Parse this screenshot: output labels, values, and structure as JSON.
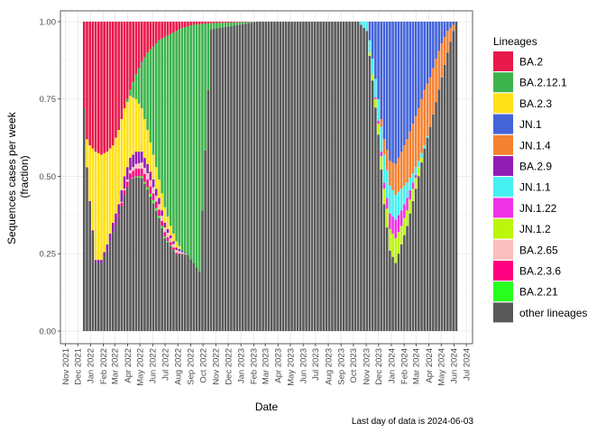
{
  "chart_data": {
    "type": "bar",
    "stacked": true,
    "xlabel": "Date",
    "ylabel_lines": [
      "Sequences cases per week",
      "(fraction)"
    ],
    "caption": "Last day of data is 2024-06-03",
    "ylim": [
      0,
      1
    ],
    "y_ticks": [
      0,
      0.25,
      0.5,
      0.75,
      1
    ],
    "y_tick_labels": [
      "0.00",
      "0.25",
      "0.50",
      "0.75",
      "1.00"
    ],
    "x_range": [
      "2021-10-20",
      "2024-07-16"
    ],
    "x_ticks": [
      "2021-11-01",
      "2021-12-01",
      "2022-01-01",
      "2022-02-01",
      "2022-03-01",
      "2022-04-01",
      "2022-05-01",
      "2022-06-01",
      "2022-07-01",
      "2022-08-01",
      "2022-09-01",
      "2022-10-01",
      "2022-11-01",
      "2022-12-01",
      "2023-01-01",
      "2023-02-01",
      "2023-03-01",
      "2023-04-01",
      "2023-05-01",
      "2023-06-01",
      "2023-07-01",
      "2023-08-01",
      "2023-09-01",
      "2023-10-01",
      "2023-11-01",
      "2023-12-01",
      "2024-01-01",
      "2024-02-01",
      "2024-03-01",
      "2024-04-01",
      "2024-05-01",
      "2024-06-01",
      "2024-07-01"
    ],
    "x_tick_labels": [
      "Nov 2021",
      "Dec 2021",
      "Jan 2022",
      "Feb 2022",
      "Mar 2022",
      "Apr 2022",
      "May 2022",
      "Jun 2022",
      "Jul 2022",
      "Aug 2022",
      "Sep 2022",
      "Oct 2022",
      "Nov 2022",
      "Dec 2022",
      "Jan 2023",
      "Feb 2023",
      "Mar 2023",
      "Apr 2023",
      "May 2023",
      "Jun 2023",
      "Jul 2023",
      "Aug 2023",
      "Sep 2023",
      "Oct 2023",
      "Nov 2023",
      "Dec 2023",
      "Jan 2024",
      "Feb 2024",
      "Mar 2024",
      "Apr 2024",
      "May 2024",
      "Jun 2024",
      "Jul 2024"
    ],
    "grid": true,
    "legend": {
      "title": "Lineages",
      "position": "right",
      "entries": [
        {
          "name": "BA.2",
          "color": "#e8194b"
        },
        {
          "name": "BA.2.12.1",
          "color": "#3cb44b"
        },
        {
          "name": "BA.2.3",
          "color": "#ffe119"
        },
        {
          "name": "JN.1",
          "color": "#4363d8"
        },
        {
          "name": "JN.1.4",
          "color": "#f58231"
        },
        {
          "name": "BA.2.9",
          "color": "#911eb4"
        },
        {
          "name": "JN.1.1",
          "color": "#46f0f0"
        },
        {
          "name": "JN.1.22",
          "color": "#f032e6"
        },
        {
          "name": "JN.1.2",
          "color": "#bcf60c"
        },
        {
          "name": "BA.2.65",
          "color": "#fabebe"
        },
        {
          "name": "BA.2.3.6",
          "color": "#ff0080"
        },
        {
          "name": "BA.2.21",
          "color": "#29ff1f"
        },
        {
          "name": "other lineages",
          "color": "#595959"
        }
      ]
    },
    "week_start": "2021-12-13",
    "week_count": 130,
    "series_keyframes": {
      "note_units": "fraction of weekly sequences",
      "BA.2": {
        "weeks": [
          0,
          1,
          2,
          4,
          6,
          8,
          10,
          12,
          14,
          16,
          18,
          20,
          22,
          24,
          26,
          28,
          30,
          32,
          34,
          36,
          38,
          40,
          44,
          60,
          129
        ],
        "values": [
          0.28,
          0.38,
          0.4,
          0.42,
          0.43,
          0.42,
          0.4,
          0.35,
          0.28,
          0.22,
          0.17,
          0.13,
          0.1,
          0.08,
          0.06,
          0.05,
          0.04,
          0.03,
          0.02,
          0.015,
          0.01,
          0.008,
          0.005,
          0.0,
          0.0
        ]
      },
      "BA.2.12.1": {
        "weeks": [
          0,
          14,
          16,
          18,
          20,
          22,
          24,
          26,
          28,
          30,
          32,
          34,
          36,
          38,
          40,
          44,
          60,
          129
        ],
        "values": [
          0.0,
          0.0,
          0.02,
          0.08,
          0.15,
          0.25,
          0.35,
          0.45,
          0.55,
          0.62,
          0.68,
          0.72,
          0.74,
          0.77,
          0.8,
          0.02,
          0.0,
          0.0
        ]
      },
      "BA.2.3": {
        "weeks": [
          0,
          2,
          4,
          6,
          8,
          10,
          12,
          14,
          16,
          18,
          20,
          22,
          24,
          26,
          28,
          30,
          32,
          34,
          36,
          129
        ],
        "values": [
          0.0,
          0.18,
          0.35,
          0.34,
          0.3,
          0.25,
          0.24,
          0.22,
          0.2,
          0.17,
          0.14,
          0.11,
          0.08,
          0.06,
          0.05,
          0.03,
          0.02,
          0.0,
          0.0,
          0.0
        ]
      },
      "JN.1": {
        "weeks": [
          0,
          98,
          100,
          102,
          104,
          106,
          108,
          110,
          112,
          114,
          116,
          118,
          120,
          122,
          124,
          126,
          129
        ],
        "values": [
          0.0,
          0.0,
          0.12,
          0.25,
          0.38,
          0.45,
          0.46,
          0.42,
          0.38,
          0.33,
          0.28,
          0.22,
          0.18,
          0.12,
          0.07,
          0.03,
          0.0
        ]
      },
      "JN.1.4": {
        "weeks": [
          0,
          102,
          104,
          106,
          108,
          110,
          112,
          114,
          116,
          118,
          120,
          122,
          124,
          126,
          128,
          129
        ],
        "values": [
          0.0,
          0.0,
          0.05,
          0.08,
          0.1,
          0.12,
          0.14,
          0.16,
          0.17,
          0.18,
          0.16,
          0.14,
          0.11,
          0.07,
          0.02,
          0.0
        ]
      },
      "BA.2.9": {
        "weeks": [
          0,
          6,
          10,
          14,
          18,
          22,
          26,
          30,
          34,
          36,
          129
        ],
        "values": [
          0.0,
          0.01,
          0.03,
          0.04,
          0.04,
          0.03,
          0.02,
          0.01,
          0.005,
          0.0,
          0.0
        ]
      },
      "JN.1.1": {
        "weeks": [
          0,
          95,
          98,
          100,
          102,
          104,
          106,
          108,
          110,
          112,
          114,
          116,
          118,
          120,
          129
        ],
        "values": [
          0.0,
          0.0,
          0.03,
          0.05,
          0.07,
          0.09,
          0.09,
          0.08,
          0.07,
          0.05,
          0.03,
          0.02,
          0.01,
          0.0,
          0.0
        ]
      },
      "JN.1.22": {
        "weeks": [
          0,
          100,
          104,
          106,
          108,
          110,
          112,
          114,
          116,
          129
        ],
        "values": [
          0.0,
          0.0,
          0.02,
          0.05,
          0.06,
          0.05,
          0.04,
          0.02,
          0.0,
          0.0
        ]
      },
      "JN.1.2": {
        "weeks": [
          0,
          98,
          100,
          104,
          106,
          108,
          110,
          112,
          114,
          116,
          118,
          129
        ],
        "values": [
          0.0,
          0.0,
          0.02,
          0.05,
          0.07,
          0.08,
          0.06,
          0.05,
          0.04,
          0.03,
          0.0,
          0.0
        ]
      },
      "BA.2.65": {
        "weeks": [
          0,
          12,
          16,
          20,
          24,
          28,
          32,
          36,
          129
        ],
        "values": [
          0.0,
          0.0,
          0.01,
          0.02,
          0.02,
          0.015,
          0.01,
          0.0,
          0.0
        ]
      },
      "BA.2.3.6": {
        "weeks": [
          0,
          10,
          14,
          18,
          22,
          26,
          30,
          34,
          129
        ],
        "values": [
          0.0,
          0.0,
          0.015,
          0.025,
          0.025,
          0.02,
          0.01,
          0.0,
          0.0
        ]
      },
      "BA.2.21": {
        "weeks": [
          0,
          16,
          20,
          24,
          28,
          32,
          129
        ],
        "values": [
          0.0,
          0.0,
          0.005,
          0.01,
          0.005,
          0.0,
          0.0
        ]
      }
    }
  }
}
